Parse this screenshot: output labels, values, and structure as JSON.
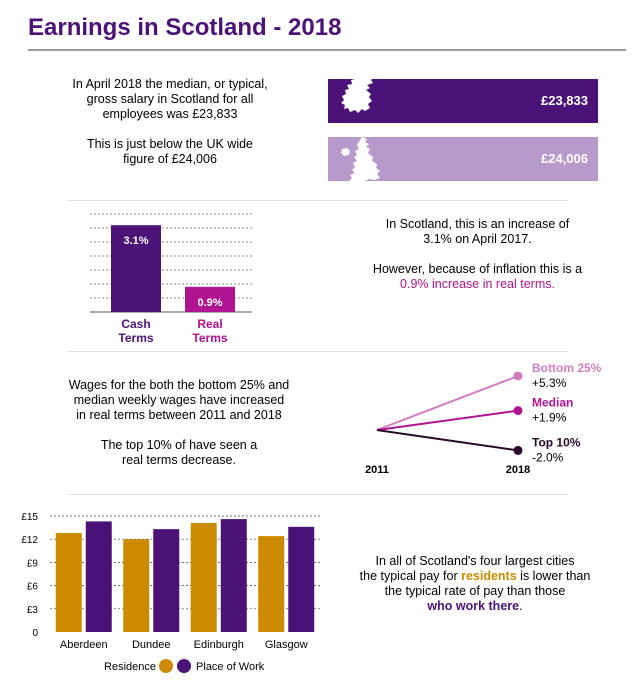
{
  "title": "Earnings in Scotland - 2018",
  "intro": {
    "line1": "In April 2018 the median, or typical,",
    "line2": "gross salary in Scotland for all",
    "line3": "employees was £23,833",
    "line4": "This is just below the UK wide",
    "line5": "figure of £24,006"
  },
  "salary_bars": {
    "scotland_label": "£23,833",
    "uk_label": "£24,006",
    "colors": {
      "scotland": "#4b1377",
      "uk": "#b79acb",
      "map": "#ffffff"
    }
  },
  "increase_text": {
    "line1": "In Scotland, this is an increase of",
    "line2": "3.1% on April 2017.",
    "line3": "However, because of inflation this is a",
    "line4": "0.9% increase in real terms."
  },
  "wages_text": {
    "line1": "Wages for the both the bottom 25% and",
    "line2": "median weekly wages have increased",
    "line3": "in real terms between 2011 and 2018",
    "line4": "The top 10% of have seen a",
    "line5": "real terms decrease."
  },
  "cities_text": {
    "line1": "In all of Scotland's four largest cities",
    "line2a": "the typical pay for ",
    "line2b": "residents",
    "line2c": " is lower than",
    "line3": "the typical rate of pay than those",
    "line4": "who work there",
    "line4end": "."
  },
  "chart_data": [
    {
      "type": "bar",
      "categories": [
        "Cash Terms",
        "Real Terms"
      ],
      "categories_display": [
        [
          "Cash",
          "Terms"
        ],
        [
          "Real",
          "Terms"
        ]
      ],
      "values": [
        3.1,
        0.9
      ],
      "value_labels": [
        "3.1%",
        "0.9%"
      ],
      "colors": [
        "#4b1377",
        "#b0138f"
      ],
      "ylim": [
        0,
        3.5
      ],
      "grid": true
    },
    {
      "type": "line",
      "x": [
        "2011",
        "2018"
      ],
      "series": [
        {
          "name": "Bottom 25%",
          "change_label": "+5.3%",
          "values": [
            0,
            5.3
          ],
          "color": "#d17ec0"
        },
        {
          "name": "Median",
          "change_label": "+1.9%",
          "values": [
            0,
            1.9
          ],
          "color": "#b0138f"
        },
        {
          "name": "Top 10%",
          "change_label": "-2.0%",
          "values": [
            0,
            -2.0
          ],
          "color": "#2b0829"
        }
      ]
    },
    {
      "type": "bar",
      "categories": [
        "Aberdeen",
        "Dundee",
        "Edinburgh",
        "Glasgow"
      ],
      "ylim": [
        0,
        15
      ],
      "yticks": [
        0,
        3,
        6,
        9,
        12,
        15
      ],
      "ytick_labels": [
        "0",
        "£3",
        "£6",
        "£9",
        "£12",
        "£15"
      ],
      "grid": true,
      "legend_position": "bottom",
      "series": [
        {
          "name": "Residence",
          "values": [
            12.8,
            12.0,
            14.1,
            12.4
          ],
          "color": "#cc8a00"
        },
        {
          "name": "Place of Work",
          "values": [
            14.3,
            13.3,
            14.6,
            13.6
          ],
          "color": "#4b1377"
        }
      ]
    }
  ]
}
